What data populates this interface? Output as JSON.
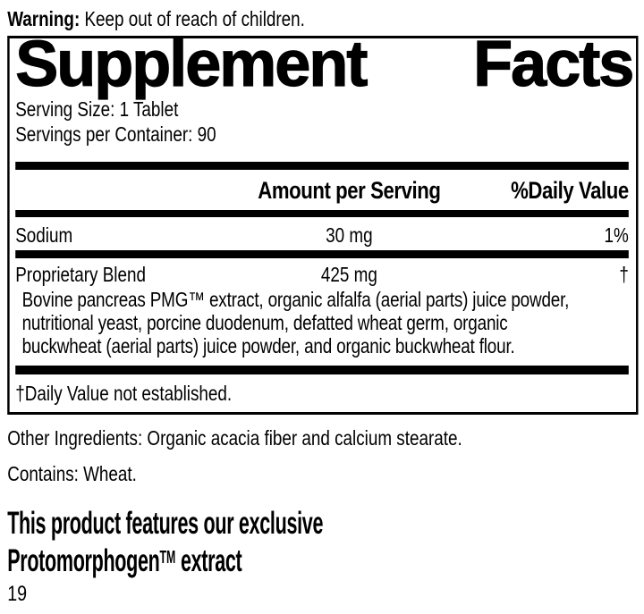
{
  "colors": {
    "text": "#000000",
    "background": "#ffffff",
    "rule": "#000000"
  },
  "warning": {
    "label": "Warning:",
    "text": "Keep out of reach of children."
  },
  "supplement_facts": {
    "title_left": "Supplement",
    "title_right": "Facts",
    "serving_size": "Serving Size: 1 Tablet",
    "servings_per_container": "Servings per Container: 90",
    "header": {
      "amount": "Amount per Serving",
      "daily_value": "%Daily Value"
    },
    "rows": [
      {
        "name": "Sodium",
        "amount": "30 mg",
        "daily_value": "1%"
      },
      {
        "name": "Proprietary Blend",
        "amount": "425 mg",
        "daily_value": "†"
      }
    ],
    "blend_description": [
      "Bovine pancreas PMG™ extract, organic alfalfa (aerial parts) juice powder,",
      "nutritional yeast, porcine duodenum, defatted wheat germ, organic",
      "buckwheat (aerial parts) juice powder, and organic buckwheat flour."
    ],
    "footnote": "†Daily Value not established."
  },
  "other_ingredients": "Other Ingredients: Organic acacia fiber and calcium stearate.",
  "contains": "Contains: Wheat.",
  "feature_heading": {
    "line1": "This product features our exclusive",
    "line2_name": "Protomorphogen",
    "line2_tm": "TM",
    "line2_rest": "extract"
  },
  "page_number": "19"
}
